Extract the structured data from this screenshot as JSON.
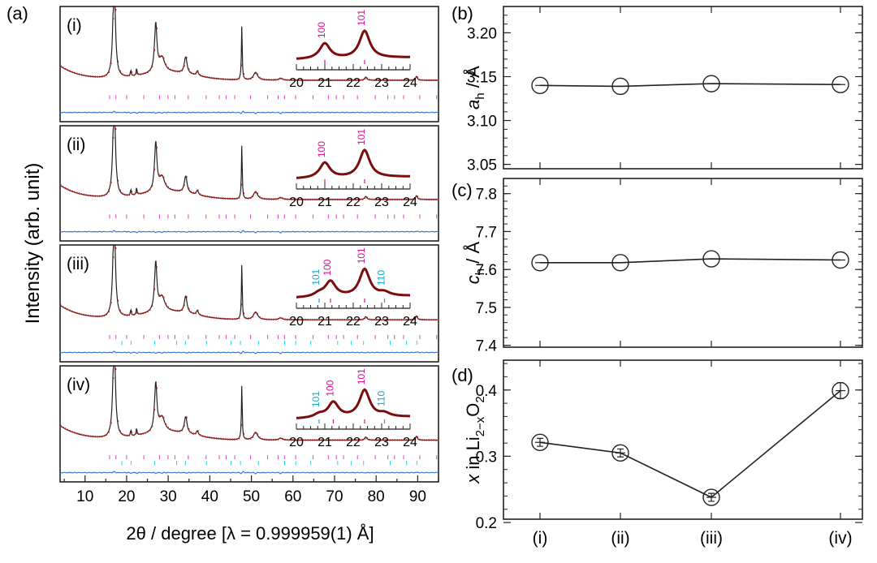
{
  "figure": {
    "panel_labels": [
      "(a)",
      "(b)",
      "(c)",
      "(d)"
    ],
    "left_ylabel": "Intensity (arb. unit)",
    "left_xlabel": "2θ / degree [λ = 0.999959(1) Å]",
    "subpanel_labels": [
      "(i)",
      "(ii)",
      "(iii)",
      "(iv)"
    ],
    "inset_xticks": [
      "20",
      "21",
      "22",
      "23",
      "24"
    ],
    "inset_peaks": [
      [
        {
          "label": "100",
          "x": 21.0,
          "color": "#d4148c"
        },
        {
          "label": "101",
          "x": 22.4,
          "color": "#d4148c"
        }
      ],
      [
        {
          "label": "100",
          "x": 21.0,
          "color": "#d4148c"
        },
        {
          "label": "101",
          "x": 22.4,
          "color": "#d4148c"
        }
      ],
      [
        {
          "label": "101",
          "x": 20.8,
          "color": "#1aa7c6"
        },
        {
          "label": "100",
          "x": 21.2,
          "color": "#d4148c"
        },
        {
          "label": "101",
          "x": 22.4,
          "color": "#d4148c"
        },
        {
          "label": "110",
          "x": 23.1,
          "color": "#1aa7c6"
        }
      ],
      [
        {
          "label": "101",
          "x": 20.8,
          "color": "#1aa7c6"
        },
        {
          "label": "100",
          "x": 21.3,
          "color": "#d4148c"
        },
        {
          "label": "101",
          "x": 22.4,
          "color": "#d4148c"
        },
        {
          "label": "110",
          "x": 23.1,
          "color": "#1aa7c6"
        }
      ]
    ],
    "colors": {
      "obs": "#d11a1a",
      "calc": "#222222",
      "diff": "#3a78c9",
      "tick_phase1": "#e040c0",
      "tick_phase2": "#2ad1e6",
      "inset_fit": "#7a0d0d"
    }
  },
  "chart_data": [
    {
      "type": "line",
      "xlim": [
        4,
        95
      ],
      "xticks": [
        10,
        20,
        30,
        40,
        50,
        60,
        70,
        80,
        90
      ],
      "peaks_2theta": [
        17.0,
        21.0,
        22.4,
        27.0,
        28.5,
        34.2,
        37.0,
        47.7,
        51.0,
        57.0,
        77.5,
        89.7
      ]
    },
    {
      "type": "scatter",
      "categories": [
        "(i)",
        "(ii)",
        "(iii)",
        "(iv)"
      ],
      "values": [
        3.14,
        3.139,
        3.142,
        3.141
      ],
      "ylim": [
        3.045,
        3.23
      ],
      "yticks": [
        "3.05",
        "3.10",
        "3.15",
        "3.20"
      ],
      "ylabel_main": "a",
      "ylabel_sub": "h",
      "ylabel_unit": " / Å"
    },
    {
      "type": "scatter",
      "categories": [
        "(i)",
        "(ii)",
        "(iii)",
        "(iv)"
      ],
      "values": [
        7.618,
        7.618,
        7.628,
        7.625
      ],
      "ylim": [
        7.395,
        7.84
      ],
      "yticks": [
        "7.4",
        "7.5",
        "7.6",
        "7.7",
        "7.8"
      ],
      "ylabel_main": "c",
      "ylabel_sub": "h",
      "ylabel_unit": " / Å"
    },
    {
      "type": "scatter",
      "categories": [
        "(i)",
        "(ii)",
        "(iii)",
        "(iv)"
      ],
      "values": [
        0.321,
        0.305,
        0.238,
        0.399
      ],
      "errors": [
        0.006,
        0.006,
        0.006,
        0.012
      ],
      "ylim": [
        0.205,
        0.445
      ],
      "yticks": [
        "0.2",
        "0.3",
        "0.4"
      ],
      "ylabel_parts": [
        "x",
        " in Li",
        "2−x",
        "O",
        "2"
      ]
    }
  ]
}
